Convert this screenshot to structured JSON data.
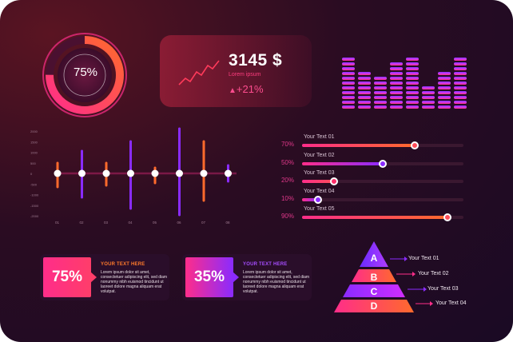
{
  "colors": {
    "magenta": "#ff2d8a",
    "orange": "#ff6a2c",
    "purple": "#8a2bff",
    "pink": "#ff3d7f"
  },
  "donut": {
    "label": "75%",
    "value": 75
  },
  "stat": {
    "value": "3145 $",
    "subtitle": "Lorem ipsum",
    "delta": "+21%"
  },
  "equalizer": {
    "levels": [
      11,
      8,
      7,
      10,
      11,
      5,
      8,
      11
    ]
  },
  "dotplot": {
    "ticks": [
      "2000",
      "1500",
      "1000",
      "500",
      "0",
      "-500",
      "-1000",
      "-1500",
      "-2000"
    ],
    "labels": [
      "01",
      "02",
      "03",
      "04",
      "05",
      "06",
      "07",
      "08"
    ]
  },
  "sliders": [
    {
      "title": "Your Text 01",
      "percent_label": "70%",
      "value": 70
    },
    {
      "title": "Your Text 02",
      "percent_label": "50%",
      "value": 50
    },
    {
      "title": "Your Text 03",
      "percent_label": "20%",
      "value": 20
    },
    {
      "title": "Your Text 04",
      "percent_label": "10%",
      "value": 10
    },
    {
      "title": "Your Text 05",
      "percent_label": "90%",
      "value": 90
    }
  ],
  "callouts": [
    {
      "badge": "75%",
      "heading": "YOUR TEXT HERE",
      "body": "Lorem ipsum dolor sit amet, consectetuer adipiscing elit, sed diam nonummy nibh euismod tincidunt ut laoreet dolore magna aliquam erat volutpat."
    },
    {
      "badge": "35%",
      "heading": "YOUR TEXT HERE",
      "body": "Lorem ipsum dolor sit amet, consectetuer adipiscing elit, sed diam nonummy nibh euismod tincidunt ut laoreet dolore magna aliquam erat volutpat."
    }
  ],
  "pyramid": [
    {
      "letter": "A",
      "text": "Your Text 01"
    },
    {
      "letter": "B",
      "text": "Your Text 02"
    },
    {
      "letter": "C",
      "text": "Your Text 03"
    },
    {
      "letter": "D",
      "text": "Your Text 04"
    }
  ]
}
